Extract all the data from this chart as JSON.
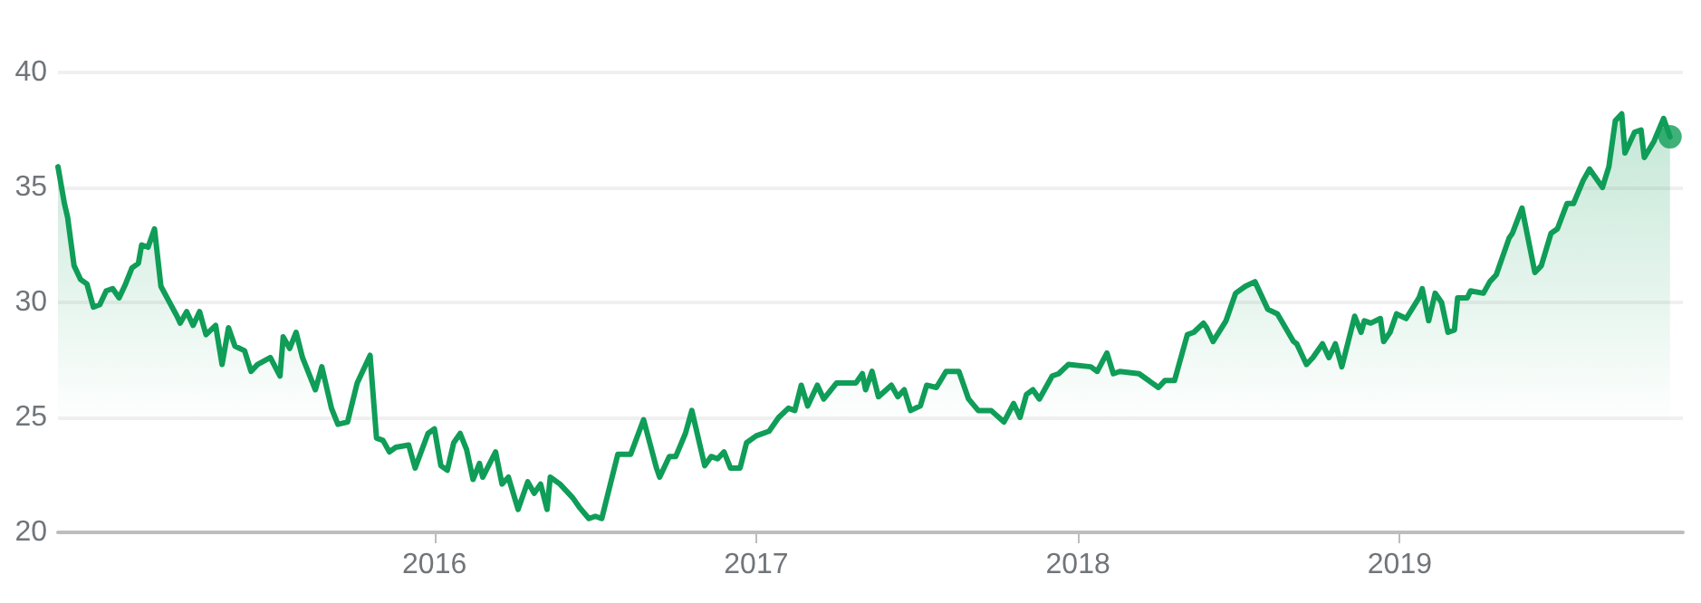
{
  "chart_data": {
    "type": "area",
    "grid": "y",
    "marker": "none",
    "line_style": "solid",
    "xlim": [
      2014.83,
      2019.88
    ],
    "xticks": [
      2016,
      2017,
      2018,
      2019
    ],
    "ylim": [
      20,
      40
    ],
    "yticks": [
      20,
      25,
      30,
      35,
      40
    ],
    "series": [
      {
        "color": "#0f9d58",
        "x": [
          2014.83,
          2014.85,
          2014.86,
          2014.88,
          2014.9,
          2014.92,
          2014.94,
          2014.96,
          2014.98,
          2015.0,
          2015.02,
          2015.04,
          2015.06,
          2015.08,
          2015.09,
          2015.11,
          2015.13,
          2015.15,
          2015.2,
          2015.21,
          2015.23,
          2015.25,
          2015.27,
          2015.29,
          2015.32,
          2015.34,
          2015.36,
          2015.38,
          2015.41,
          2015.43,
          2015.45,
          2015.49,
          2015.52,
          2015.53,
          2015.55,
          2015.57,
          2015.59,
          2015.63,
          2015.65,
          2015.68,
          2015.7,
          2015.73,
          2015.76,
          2015.8,
          2015.82,
          2015.84,
          2015.86,
          2015.88,
          2015.92,
          2015.94,
          2015.98,
          2016.0,
          2016.02,
          2016.04,
          2016.06,
          2016.08,
          2016.1,
          2016.12,
          2016.14,
          2016.15,
          2016.19,
          2016.21,
          2016.23,
          2016.26,
          2016.29,
          2016.31,
          2016.33,
          2016.35,
          2016.36,
          2016.39,
          2016.43,
          2016.45,
          2016.48,
          2016.5,
          2016.52,
          2016.57,
          2016.61,
          2016.65,
          2016.69,
          2016.7,
          2016.73,
          2016.75,
          2016.78,
          2016.8,
          2016.84,
          2016.86,
          2016.88,
          2016.9,
          2016.92,
          2016.95,
          2016.97,
          2017.0,
          2017.04,
          2017.07,
          2017.1,
          2017.12,
          2017.14,
          2017.16,
          2017.19,
          2017.21,
          2017.25,
          2017.31,
          2017.33,
          2017.34,
          2017.36,
          2017.38,
          2017.42,
          2017.44,
          2017.46,
          2017.48,
          2017.51,
          2017.53,
          2017.56,
          2017.59,
          2017.63,
          2017.66,
          2017.69,
          2017.73,
          2017.77,
          2017.8,
          2017.82,
          2017.84,
          2017.86,
          2017.88,
          2017.92,
          2017.94,
          2017.97,
          2018.04,
          2018.06,
          2018.09,
          2018.11,
          2018.13,
          2018.19,
          2018.25,
          2018.27,
          2018.3,
          2018.34,
          2018.36,
          2018.39,
          2018.4,
          2018.42,
          2018.46,
          2018.49,
          2018.52,
          2018.55,
          2018.59,
          2018.62,
          2018.67,
          2018.68,
          2018.71,
          2018.73,
          2018.76,
          2018.78,
          2018.8,
          2018.82,
          2018.86,
          2018.88,
          2018.89,
          2018.91,
          2018.94,
          2018.95,
          2018.97,
          2018.99,
          2019.02,
          2019.06,
          2019.07,
          2019.09,
          2019.11,
          2019.13,
          2019.15,
          2019.17,
          2019.18,
          2019.21,
          2019.22,
          2019.26,
          2019.28,
          2019.3,
          2019.34,
          2019.35,
          2019.38,
          2019.42,
          2019.44,
          2019.47,
          2019.49,
          2019.52,
          2019.54,
          2019.57,
          2019.59,
          2019.63,
          2019.65,
          2019.67,
          2019.69,
          2019.7,
          2019.73,
          2019.75,
          2019.76,
          2019.79,
          2019.82,
          2019.84
        ],
        "values": [
          35.9,
          34.3,
          33.7,
          31.6,
          31.0,
          30.8,
          29.8,
          29.9,
          30.5,
          30.6,
          30.2,
          30.8,
          31.5,
          31.7,
          32.5,
          32.4,
          33.2,
          30.7,
          29.4,
          29.1,
          29.6,
          29.0,
          29.6,
          28.6,
          29.0,
          27.3,
          28.9,
          28.1,
          27.9,
          27.0,
          27.3,
          27.6,
          26.8,
          28.5,
          28.0,
          28.7,
          27.6,
          26.2,
          27.2,
          25.4,
          24.7,
          24.8,
          26.5,
          27.7,
          24.1,
          24.0,
          23.5,
          23.7,
          23.8,
          22.8,
          24.3,
          24.5,
          22.9,
          22.7,
          23.9,
          24.3,
          23.6,
          22.3,
          23.0,
          22.4,
          23.5,
          22.1,
          22.4,
          21.0,
          22.2,
          21.7,
          22.1,
          21.0,
          22.4,
          22.1,
          21.5,
          21.1,
          20.6,
          20.7,
          20.6,
          23.4,
          23.4,
          24.9,
          22.8,
          22.4,
          23.3,
          23.3,
          24.3,
          25.3,
          22.9,
          23.3,
          23.2,
          23.5,
          22.8,
          22.8,
          23.9,
          24.2,
          24.4,
          25.0,
          25.4,
          25.3,
          26.4,
          25.5,
          26.4,
          25.8,
          26.5,
          26.5,
          26.9,
          26.2,
          27.0,
          25.9,
          26.4,
          25.9,
          26.2,
          25.3,
          25.5,
          26.4,
          26.3,
          27.0,
          27.0,
          25.8,
          25.3,
          25.3,
          24.8,
          25.6,
          25.0,
          26.0,
          26.2,
          25.8,
          26.8,
          26.9,
          27.3,
          27.2,
          27.0,
          27.8,
          26.9,
          27.0,
          26.9,
          26.3,
          26.6,
          26.6,
          28.6,
          28.7,
          29.1,
          28.9,
          28.3,
          29.2,
          30.4,
          30.7,
          30.9,
          29.7,
          29.5,
          28.3,
          28.2,
          27.3,
          27.6,
          28.2,
          27.6,
          28.2,
          27.2,
          29.4,
          28.7,
          29.2,
          29.1,
          29.3,
          28.3,
          28.7,
          29.5,
          29.3,
          30.2,
          30.6,
          29.2,
          30.4,
          30.0,
          28.7,
          28.8,
          30.2,
          30.2,
          30.5,
          30.4,
          30.9,
          31.2,
          32.8,
          33.0,
          34.1,
          31.3,
          31.6,
          33.0,
          33.2,
          34.3,
          34.3,
          35.3,
          35.8,
          35.0,
          35.9,
          37.9,
          38.2,
          36.5,
          37.4,
          37.5,
          36.3,
          37.0,
          38.0,
          37.2
        ]
      },
      {
        "type": "scatter",
        "marker": "circle",
        "color": "#0f9d58",
        "x": [
          2019.84
        ],
        "values": [
          37.2
        ]
      }
    ]
  }
}
